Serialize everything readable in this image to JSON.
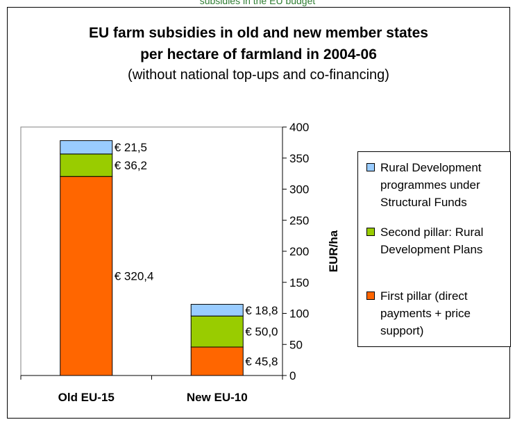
{
  "header_caption": "subsidies in the EU budget",
  "chart_data": {
    "type": "bar",
    "stacked": true,
    "title_lines": [
      "EU farm subsidies in old and new member states",
      "per hectare of farmland in 2004-06"
    ],
    "subtitle": "(without national top-ups and co-financing)",
    "categories": [
      "Old EU-15",
      "New EU-10"
    ],
    "ylabel": "EUR/ha",
    "ylim": [
      0,
      400
    ],
    "yticks": [
      0,
      50,
      100,
      150,
      200,
      250,
      300,
      350,
      400
    ],
    "y_axis_side": "right",
    "grid": false,
    "legend_position": "right",
    "series": [
      {
        "name": "First pillar (direct payments + price support)",
        "legend_lines": [
          "First pillar (direct",
          "payments + price",
          "support)"
        ],
        "color": "#ff6600",
        "values": [
          320.4,
          45.8
        ],
        "labels": [
          "€ 320,4",
          "€ 45,8"
        ]
      },
      {
        "name": "Second pillar: Rural Development Plans",
        "legend_lines": [
          "Second pillar: Rural",
          "Development Plans"
        ],
        "color": "#99cc00",
        "values": [
          36.2,
          50.0
        ],
        "labels": [
          "€ 36,2",
          "€ 50,0"
        ]
      },
      {
        "name": "Rural Development programmes under Structural Funds",
        "legend_lines": [
          "Rural Development",
          "programmes under",
          "Structural Funds"
        ],
        "color": "#99ccff",
        "values": [
          21.5,
          18.8
        ],
        "labels": [
          "€ 21,5",
          "€ 18,8"
        ]
      }
    ]
  }
}
